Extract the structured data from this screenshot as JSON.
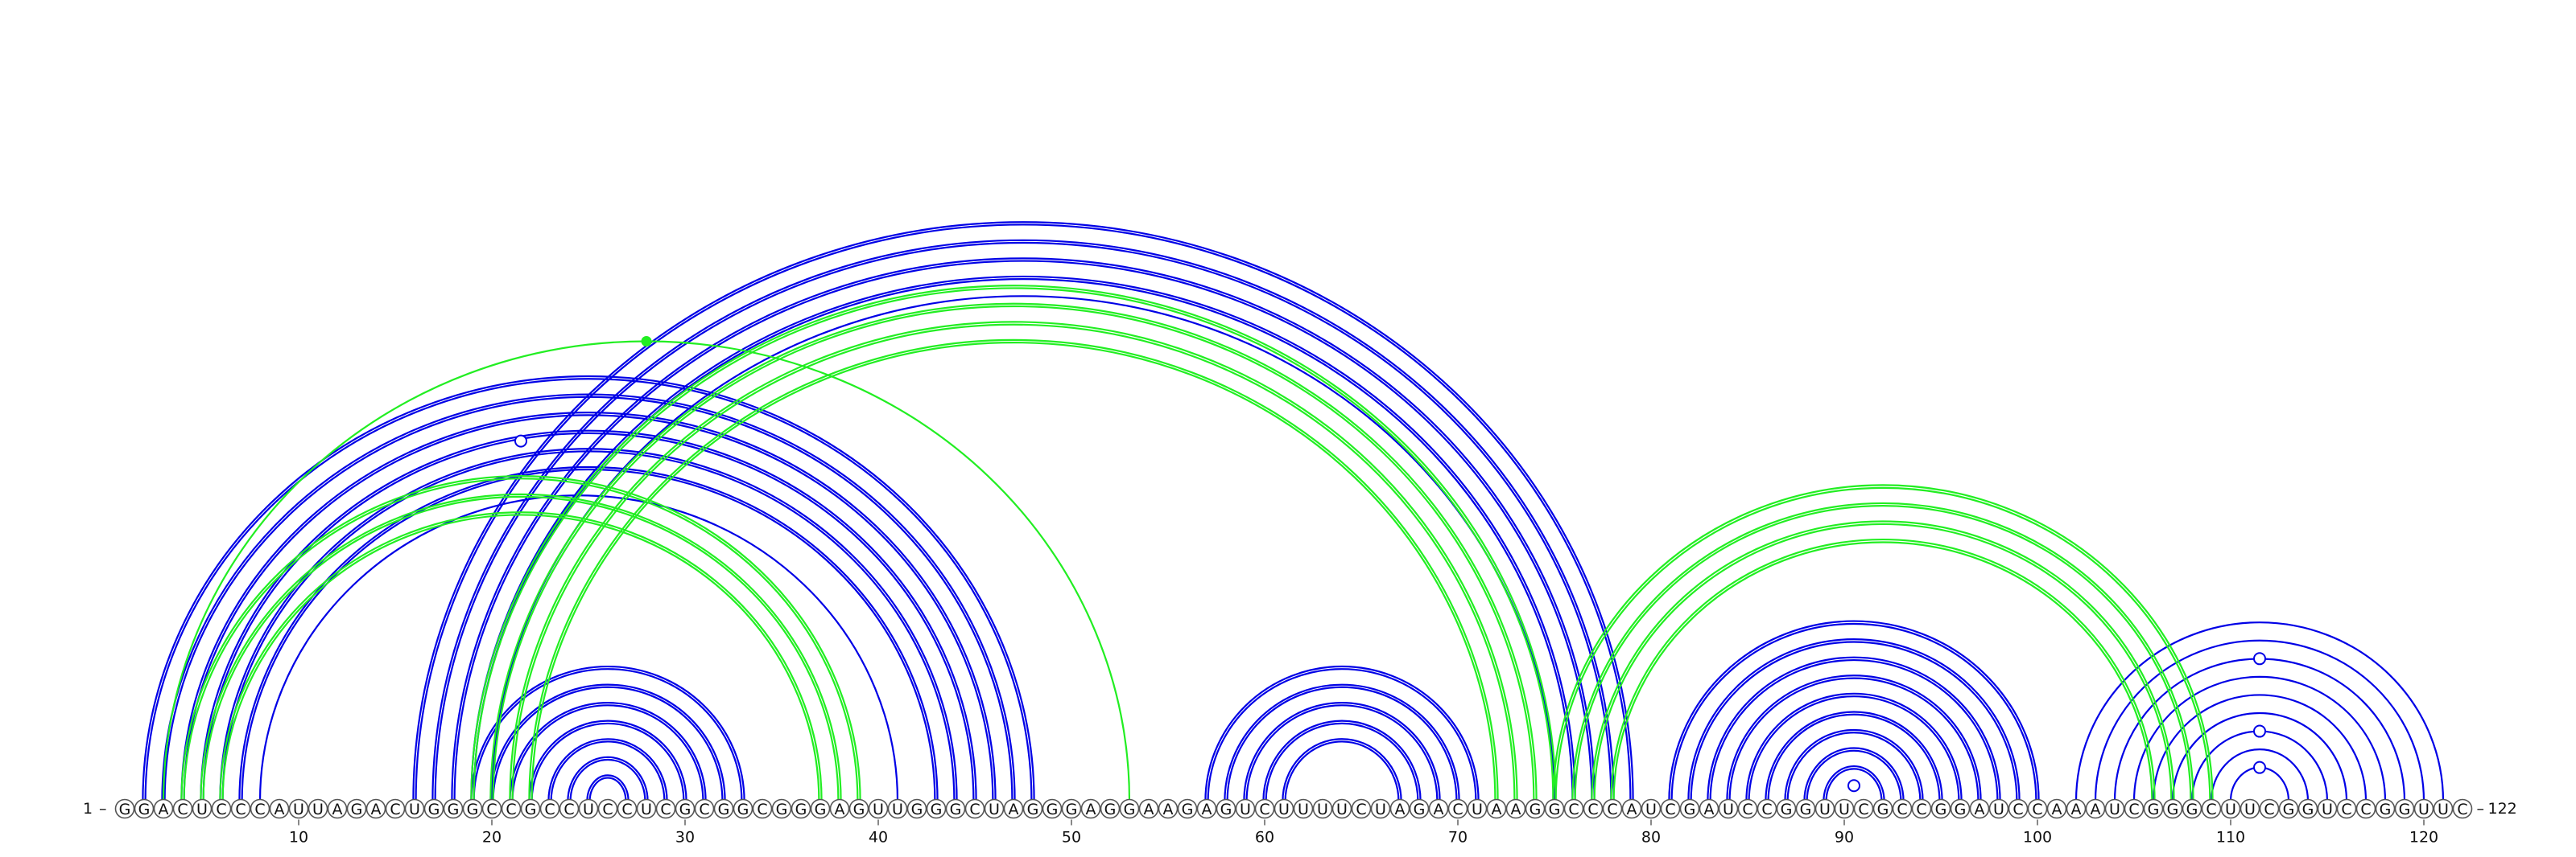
{
  "diagram": {
    "type": "rna-arc-diagram",
    "sequence": "GGACUCCCAUUAGACUGGGCCGCCUCCUCGCGGCGGGAGUUGGGCUAGGGAGGAAGAGUCUUUUCUAGACUAAGGCCCAUCGAUCCGGUUCGCCGGAUCCAAAUCGGGCUUCGGUCCGGUUC",
    "start_label": "1",
    "end_label": "122",
    "ticks": [
      "10",
      "20",
      "30",
      "40",
      "50",
      "60",
      "70",
      "80",
      "90",
      "100",
      "110",
      "120"
    ],
    "colors": {
      "structure_a": "#0000e6",
      "structure_b": "#22ee22",
      "backbone": "#555555"
    },
    "arc_groups": [
      {
        "color": "structure_a",
        "double": true,
        "pairs": [
          [
            2,
            48
          ],
          [
            3,
            47
          ],
          [
            4,
            46
          ],
          [
            5,
            45
          ],
          [
            6,
            44
          ],
          [
            7,
            43
          ]
        ]
      },
      {
        "color": "structure_a",
        "double": false,
        "pairs": [
          [
            8,
            41
          ]
        ]
      },
      {
        "color": "structure_a",
        "double": true,
        "pairs": [
          [
            16,
            79
          ],
          [
            17,
            78
          ],
          [
            18,
            77
          ],
          [
            19,
            76
          ]
        ]
      },
      {
        "color": "structure_a",
        "double": false,
        "pairs": [
          [
            20,
            75
          ]
        ]
      },
      {
        "color": "structure_a",
        "double": true,
        "pairs": [
          [
            19,
            33
          ],
          [
            20,
            32
          ],
          [
            21,
            31
          ],
          [
            22,
            30
          ],
          [
            23,
            29
          ],
          [
            24,
            28
          ],
          [
            25,
            27
          ]
        ]
      },
      {
        "color": "structure_a",
        "double": true,
        "pairs": [
          [
            57,
            71
          ],
          [
            58,
            70
          ],
          [
            59,
            69
          ],
          [
            60,
            68
          ],
          [
            61,
            67
          ]
        ]
      },
      {
        "color": "structure_a",
        "double": true,
        "pairs": [
          [
            81,
            100
          ],
          [
            82,
            99
          ],
          [
            83,
            98
          ],
          [
            84,
            97
          ],
          [
            85,
            96
          ],
          [
            86,
            95
          ],
          [
            87,
            94
          ],
          [
            88,
            93
          ],
          [
            89,
            92
          ]
        ]
      },
      {
        "color": "structure_a",
        "double": false,
        "pairs": [
          [
            102,
            121
          ],
          [
            103,
            120
          ],
          [
            104,
            119
          ],
          [
            105,
            118
          ],
          [
            106,
            117
          ],
          [
            107,
            116
          ],
          [
            108,
            115
          ],
          [
            109,
            114
          ],
          [
            110,
            113
          ]
        ]
      },
      {
        "color": "structure_b",
        "double": true,
        "pairs": [
          [
            4,
            39
          ],
          [
            5,
            38
          ],
          [
            6,
            37
          ]
        ]
      },
      {
        "color": "structure_b",
        "double": false,
        "pairs": [
          [
            3,
            53
          ]
        ]
      },
      {
        "color": "structure_b",
        "double": true,
        "pairs": [
          [
            19,
            75
          ],
          [
            20,
            74
          ],
          [
            21,
            73
          ],
          [
            22,
            72
          ]
        ]
      },
      {
        "color": "structure_b",
        "double": true,
        "pairs": [
          [
            75,
            109
          ],
          [
            76,
            108
          ],
          [
            77,
            107
          ],
          [
            78,
            106
          ]
        ]
      }
    ],
    "markers": [
      {
        "type": "filled-dot",
        "color": "structure_b",
        "pair": [
          3,
          53
        ]
      },
      {
        "type": "open-dot",
        "color": "structure_a",
        "pair": [
          2,
          41
        ]
      },
      {
        "type": "open-dot",
        "color": "structure_a",
        "pair": [
          90,
          91
        ]
      },
      {
        "type": "open-dot",
        "color": "structure_a",
        "pair": [
          110,
          113
        ]
      },
      {
        "type": "open-dot",
        "color": "structure_a",
        "pair": [
          108,
          115
        ]
      },
      {
        "type": "open-dot",
        "color": "structure_a",
        "pair": [
          104,
          119
        ]
      }
    ]
  }
}
